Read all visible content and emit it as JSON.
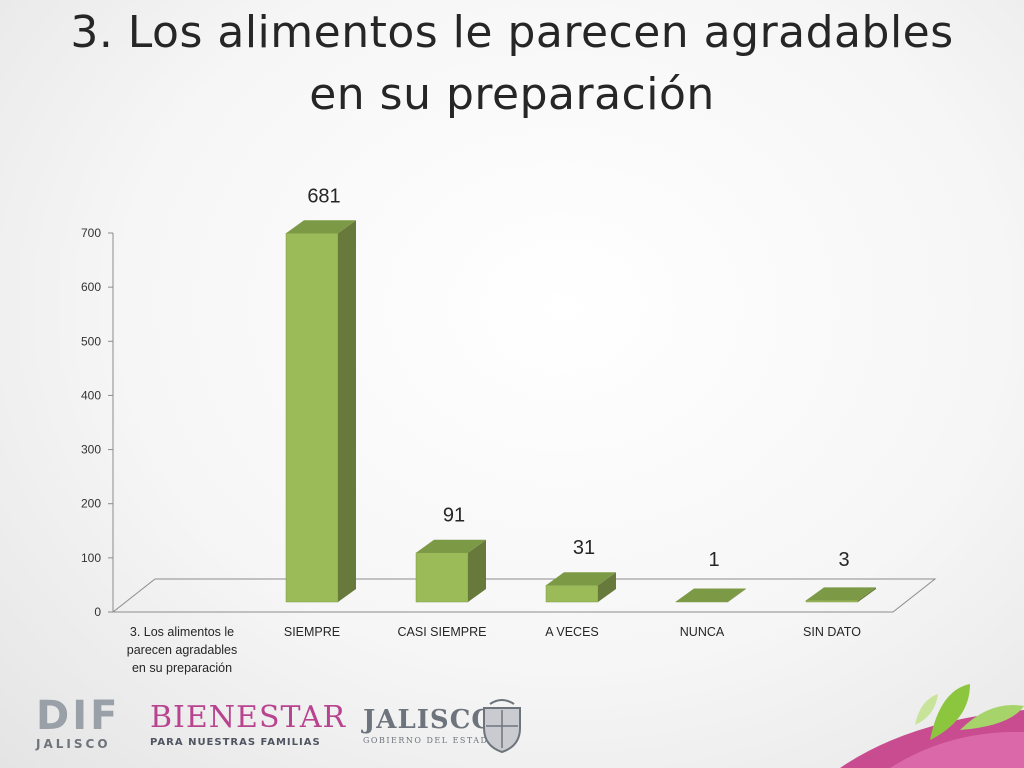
{
  "title": {
    "line1": "3. Los alimentos le parecen agradables",
    "line2": "en su preparación"
  },
  "chart_data": {
    "type": "bar",
    "categories": [
      "3. Los alimentos le parecen agradables en su preparación",
      "SIEMPRE",
      "CASI SIEMPRE",
      "A VECES",
      "NUNCA",
      "SIN DATO"
    ],
    "values": [
      null,
      681,
      91,
      31,
      1,
      3
    ],
    "data_labels": [
      "",
      "681",
      "91",
      "31",
      "1",
      "3"
    ],
    "y_ticks": [
      "0",
      "100",
      "200",
      "300",
      "400",
      "500",
      "600",
      "700"
    ],
    "ylim": [
      0,
      700
    ],
    "grid": false,
    "legend": "none",
    "style": "3d-column",
    "colors": {
      "bar_front": "#9bbb59",
      "bar_side": "#687a3b",
      "bar_top": "#7c9a46"
    }
  },
  "footer": {
    "dif": {
      "main": "DIF",
      "sub": "JALISCO"
    },
    "bienestar": {
      "main": "BIENESTAR",
      "sub": "PARA NUESTRAS FAMILIAS"
    },
    "jalisco": {
      "main": "JALISCO",
      "sub": "GOBIERNO DEL ESTADO"
    }
  }
}
